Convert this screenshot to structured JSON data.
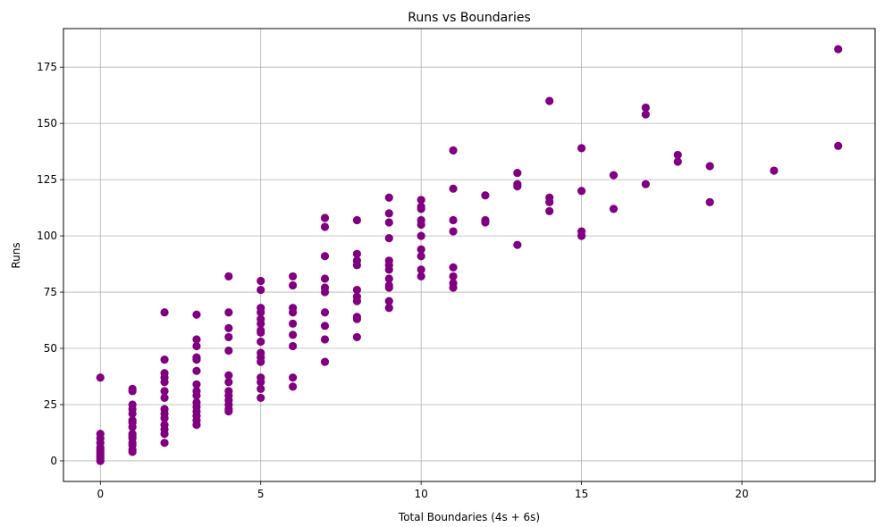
{
  "chart_data": {
    "type": "scatter",
    "title": "Runs vs Boundaries",
    "xlabel": "Total Boundaries (4s + 6s)",
    "ylabel": "Runs",
    "xlim": [
      -1.15,
      24.15
    ],
    "ylim": [
      -9.15,
      192.15
    ],
    "xticks": [
      0,
      5,
      10,
      15,
      20
    ],
    "yticks": [
      0,
      25,
      50,
      75,
      100,
      125,
      150,
      175
    ],
    "grid": true,
    "marker_color": "#800080",
    "series": [
      {
        "points": [
          [
            0,
            37
          ],
          [
            0,
            12
          ],
          [
            0,
            10
          ],
          [
            0,
            8
          ],
          [
            0,
            6
          ],
          [
            0,
            5
          ],
          [
            0,
            4
          ],
          [
            0,
            3
          ],
          [
            0,
            2
          ],
          [
            0,
            1
          ],
          [
            0,
            0
          ],
          [
            1,
            32
          ],
          [
            1,
            31
          ],
          [
            1,
            25
          ],
          [
            1,
            23
          ],
          [
            1,
            21
          ],
          [
            1,
            18
          ],
          [
            1,
            17
          ],
          [
            1,
            15
          ],
          [
            1,
            12
          ],
          [
            1,
            11
          ],
          [
            1,
            10
          ],
          [
            1,
            8
          ],
          [
            1,
            7
          ],
          [
            1,
            5
          ],
          [
            1,
            4
          ],
          [
            2,
            66
          ],
          [
            2,
            45
          ],
          [
            2,
            39
          ],
          [
            2,
            37
          ],
          [
            2,
            35
          ],
          [
            2,
            31
          ],
          [
            2,
            28
          ],
          [
            2,
            23
          ],
          [
            2,
            21
          ],
          [
            2,
            19
          ],
          [
            2,
            16
          ],
          [
            2,
            14
          ],
          [
            2,
            12
          ],
          [
            2,
            8
          ],
          [
            3,
            65
          ],
          [
            3,
            54
          ],
          [
            3,
            51
          ],
          [
            3,
            46
          ],
          [
            3,
            45
          ],
          [
            3,
            40
          ],
          [
            3,
            34
          ],
          [
            3,
            31
          ],
          [
            3,
            29
          ],
          [
            3,
            26
          ],
          [
            3,
            24
          ],
          [
            3,
            22
          ],
          [
            3,
            20
          ],
          [
            3,
            18
          ],
          [
            3,
            16
          ],
          [
            4,
            82
          ],
          [
            4,
            66
          ],
          [
            4,
            59
          ],
          [
            4,
            55
          ],
          [
            4,
            49
          ],
          [
            4,
            38
          ],
          [
            4,
            35
          ],
          [
            4,
            31
          ],
          [
            4,
            29
          ],
          [
            4,
            27
          ],
          [
            4,
            25
          ],
          [
            4,
            23
          ],
          [
            4,
            22
          ],
          [
            5,
            80
          ],
          [
            5,
            76
          ],
          [
            5,
            68
          ],
          [
            5,
            66
          ],
          [
            5,
            63
          ],
          [
            5,
            61
          ],
          [
            5,
            58
          ],
          [
            5,
            57
          ],
          [
            5,
            53
          ],
          [
            5,
            48
          ],
          [
            5,
            46
          ],
          [
            5,
            44
          ],
          [
            5,
            37
          ],
          [
            5,
            35
          ],
          [
            5,
            32
          ],
          [
            5,
            28
          ],
          [
            6,
            82
          ],
          [
            6,
            78
          ],
          [
            6,
            68
          ],
          [
            6,
            66
          ],
          [
            6,
            61
          ],
          [
            6,
            56
          ],
          [
            6,
            51
          ],
          [
            6,
            37
          ],
          [
            6,
            33
          ],
          [
            7,
            108
          ],
          [
            7,
            104
          ],
          [
            7,
            91
          ],
          [
            7,
            81
          ],
          [
            7,
            77
          ],
          [
            7,
            75
          ],
          [
            7,
            66
          ],
          [
            7,
            60
          ],
          [
            7,
            54
          ],
          [
            7,
            44
          ],
          [
            8,
            107
          ],
          [
            8,
            92
          ],
          [
            8,
            89
          ],
          [
            8,
            87
          ],
          [
            8,
            76
          ],
          [
            8,
            73
          ],
          [
            8,
            71
          ],
          [
            8,
            64
          ],
          [
            8,
            63
          ],
          [
            8,
            55
          ],
          [
            9,
            117
          ],
          [
            9,
            110
          ],
          [
            9,
            106
          ],
          [
            9,
            99
          ],
          [
            9,
            89
          ],
          [
            9,
            87
          ],
          [
            9,
            85
          ],
          [
            9,
            81
          ],
          [
            9,
            78
          ],
          [
            9,
            77
          ],
          [
            9,
            71
          ],
          [
            9,
            68
          ],
          [
            10,
            116
          ],
          [
            10,
            113
          ],
          [
            10,
            112
          ],
          [
            10,
            107
          ],
          [
            10,
            105
          ],
          [
            10,
            100
          ],
          [
            10,
            94
          ],
          [
            10,
            91
          ],
          [
            10,
            85
          ],
          [
            10,
            82
          ],
          [
            11,
            138
          ],
          [
            11,
            121
          ],
          [
            11,
            107
          ],
          [
            11,
            102
          ],
          [
            11,
            86
          ],
          [
            11,
            82
          ],
          [
            11,
            79
          ],
          [
            11,
            77
          ],
          [
            12,
            118
          ],
          [
            12,
            107
          ],
          [
            12,
            106
          ],
          [
            13,
            128
          ],
          [
            13,
            123
          ],
          [
            13,
            122
          ],
          [
            13,
            96
          ],
          [
            14,
            160
          ],
          [
            14,
            117
          ],
          [
            14,
            115
          ],
          [
            14,
            111
          ],
          [
            15,
            139
          ],
          [
            15,
            120
          ],
          [
            15,
            102
          ],
          [
            15,
            100
          ],
          [
            16,
            127
          ],
          [
            16,
            112
          ],
          [
            17,
            157
          ],
          [
            17,
            154
          ],
          [
            17,
            123
          ],
          [
            18,
            136
          ],
          [
            18,
            133
          ],
          [
            19,
            131
          ],
          [
            19,
            115
          ],
          [
            21,
            129
          ],
          [
            23,
            183
          ],
          [
            23,
            140
          ]
        ]
      }
    ]
  }
}
